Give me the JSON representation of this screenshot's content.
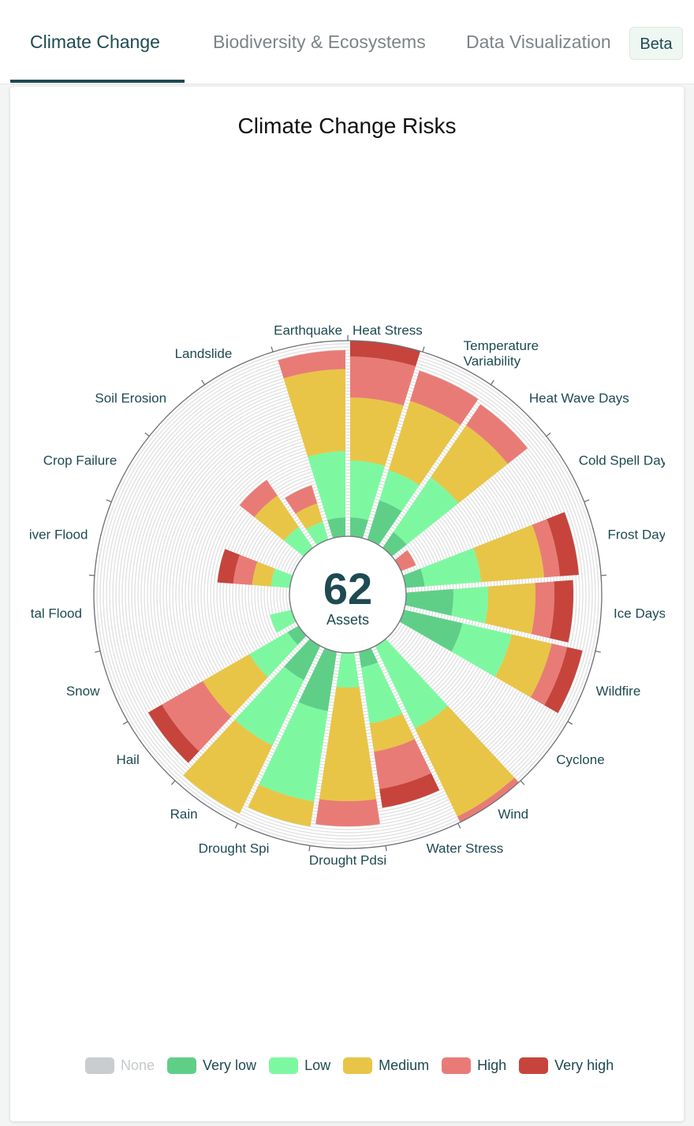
{
  "tabs": [
    {
      "label": "Climate Change",
      "active": true
    },
    {
      "label": "Biodiversity & Ecosystems",
      "active": false
    },
    {
      "label": "Data Visualization",
      "active": false
    }
  ],
  "beta_badge": "Beta",
  "center": {
    "count": "62",
    "label": "Assets"
  },
  "chart_data": {
    "type": "barpolar",
    "stacked": true,
    "title": "Climate Change Risks",
    "radial_range": [
      0,
      62
    ],
    "grid": true,
    "legend_position": "bottom",
    "categories": [
      "Heat Stress",
      "Temperature Variability",
      "Heat Wave Days",
      "Cold Spell Days",
      "Frost Days",
      "Ice Days",
      "Wildfire",
      "Cyclone",
      "Wind",
      "Water Stress",
      "Drought Pdsi",
      "Drought Spi",
      "Rain",
      "Hail",
      "Snow",
      "Coastal Flood",
      "River Flood",
      "Crop Failure",
      "Soil Erosion",
      "Landslide",
      "Earthquake"
    ],
    "series": [
      {
        "name": "None",
        "color": "#c9cdd0",
        "hidden": true,
        "values": null
      },
      {
        "name": "Very low",
        "color": "#5fcf88",
        "values": [
          6,
          13,
          6,
          0,
          6,
          15,
          19,
          0,
          0,
          5,
          0,
          19,
          12,
          4,
          0,
          0,
          0,
          0,
          0,
          0,
          6
        ]
      },
      {
        "name": "Low",
        "color": "#7ef8a0",
        "values": [
          18,
          10,
          21,
          0,
          18,
          11,
          16,
          0,
          29,
          18,
          11,
          29,
          23,
          14,
          7,
          0,
          6,
          0,
          8,
          6,
          21
        ]
      },
      {
        "name": "Medium",
        "color": "#e8c547",
        "values": [
          20,
          23,
          20,
          0,
          20,
          15,
          13,
          0,
          31,
          9,
          36,
          8,
          24,
          17,
          0,
          0,
          6,
          0,
          12,
          6,
          26
        ]
      },
      {
        "name": "High",
        "color": "#e97b76",
        "values": [
          13,
          10,
          8,
          5,
          5,
          6,
          5,
          0,
          2,
          12,
          8,
          0,
          0,
          15,
          0,
          0,
          6,
          0,
          6,
          6,
          6
        ]
      },
      {
        "name": "Very high",
        "color": "#c6443c",
        "values": [
          5,
          0,
          0,
          0,
          6,
          6,
          5,
          0,
          0,
          6,
          0,
          0,
          0,
          5,
          0,
          0,
          5,
          0,
          0,
          0,
          0
        ]
      }
    ]
  }
}
